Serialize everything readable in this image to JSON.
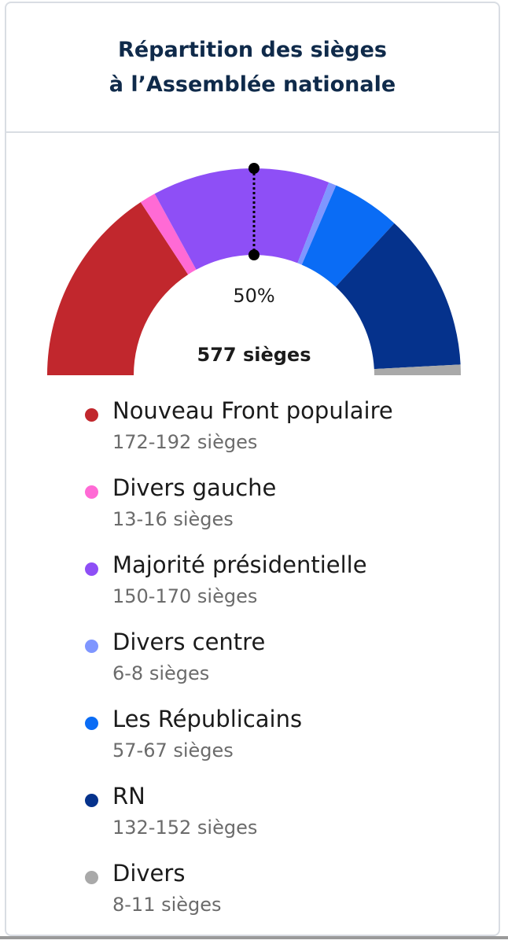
{
  "header": {
    "title_line1": "Répartition des sièges",
    "title_line2": "à l’Assemblée nationale"
  },
  "chart": {
    "majority_label": "50%",
    "total_label": "577 sièges"
  },
  "chart_data": {
    "type": "pie",
    "shape": "semicircle",
    "total": 577,
    "majority_marker": 0.5,
    "categories": [
      "Nouveau Front populaire",
      "Divers gauche",
      "Majorité présidentielle",
      "Divers centre",
      "Les Républicains",
      "RN",
      "Divers"
    ],
    "values": [
      182,
      14.5,
      160,
      7,
      62,
      142,
      9.5
    ],
    "ranges": [
      [
        172,
        192
      ],
      [
        13,
        16
      ],
      [
        150,
        170
      ],
      [
        6,
        8
      ],
      [
        57,
        67
      ],
      [
        132,
        152
      ],
      [
        8,
        11
      ]
    ],
    "colors": [
      "#c1272d",
      "#ff6ad5",
      "#8e4ff6",
      "#7f96ff",
      "#0a6cf5",
      "#05328c",
      "#a9a9a9"
    ],
    "legend": "below"
  },
  "legend": {
    "items": [
      {
        "name": "Nouveau Front populaire",
        "range": "172-192 sièges",
        "color": "#c1272d"
      },
      {
        "name": "Divers gauche",
        "range": "13-16 sièges",
        "color": "#ff6ad5"
      },
      {
        "name": "Majorité présidentielle",
        "range": "150-170 sièges",
        "color": "#8e4ff6"
      },
      {
        "name": "Divers centre",
        "range": "6-8 sièges",
        "color": "#7f96ff"
      },
      {
        "name": "Les Républicains",
        "range": "57-67 sièges",
        "color": "#0a6cf5"
      },
      {
        "name": "RN",
        "range": "132-152 sièges",
        "color": "#05328c"
      },
      {
        "name": "Divers",
        "range": "8-11 sièges",
        "color": "#a9a9a9"
      }
    ]
  }
}
